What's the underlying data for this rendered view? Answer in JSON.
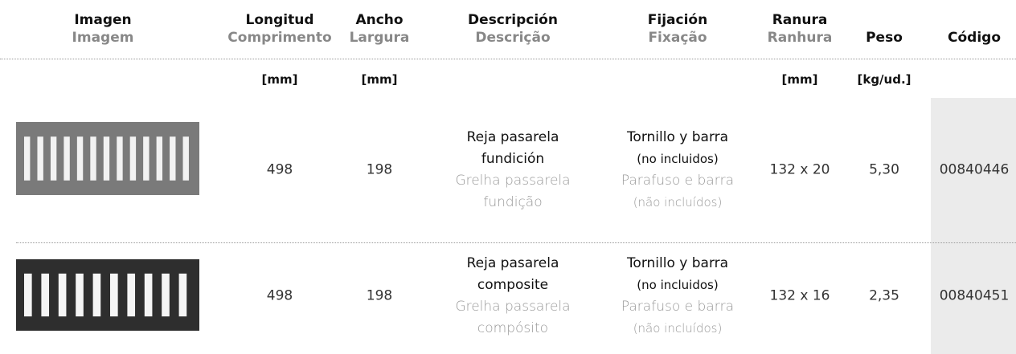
{
  "header": {
    "columns": [
      {
        "es": "Imagen",
        "pt": "Imagem"
      },
      {
        "es": "Longitud",
        "pt": "Comprimento",
        "unit": "[mm]"
      },
      {
        "es": "Ancho",
        "pt": "Largura",
        "unit": "[mm]"
      },
      {
        "es": "Descripción",
        "pt": "Descrição"
      },
      {
        "es": "Fijación",
        "pt": "Fixação"
      },
      {
        "es": "Ranura",
        "pt": "Ranhura",
        "unit": "[mm]"
      },
      {
        "es": "Peso",
        "unit": "[kg/ud.]"
      },
      {
        "es": "Código"
      }
    ]
  },
  "rows": [
    {
      "longitud": "498",
      "ancho": "198",
      "descripcion": {
        "es": [
          "Reja pasarela",
          "fundición"
        ],
        "pt": [
          "Grelha passarela",
          "fundição"
        ]
      },
      "fijacion": {
        "es": [
          "Tornillo y barra",
          "(no incluidos)"
        ],
        "pt": [
          "Parafuso e barra",
          "(não incluídos)"
        ]
      },
      "ranura": "132 x 20",
      "peso": "5,30",
      "codigo": "00840446"
    },
    {
      "longitud": "498",
      "ancho": "198",
      "descripcion": {
        "es": [
          "Reja pasarela",
          "composite"
        ],
        "pt": [
          "Grelha passarela",
          "compósito"
        ]
      },
      "fijacion": {
        "es": [
          "Tornillo y barra",
          "(no incluidos)"
        ],
        "pt": [
          "Parafuso e barra",
          "(não incluídos)"
        ]
      },
      "ranura": "132 x 16",
      "peso": "2,35",
      "codigo": "00840451"
    }
  ]
}
